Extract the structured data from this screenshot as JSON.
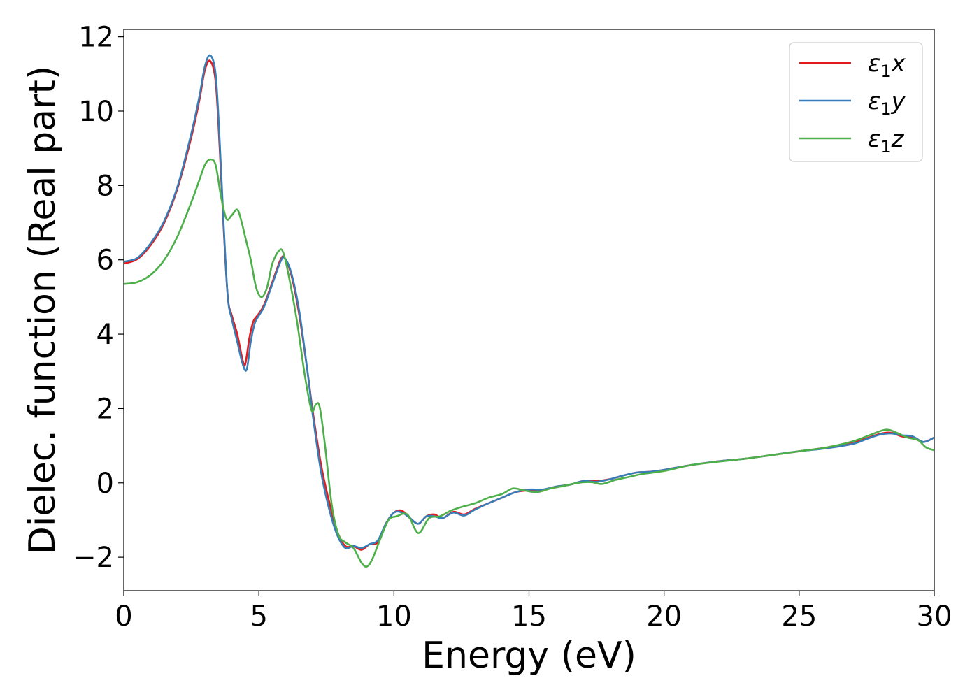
{
  "chart_data": {
    "type": "line",
    "title": "",
    "xlabel": "Energy (eV)",
    "ylabel": "Dielec. function (Real part)",
    "xlim": [
      0,
      30
    ],
    "ylim": [
      -2.9,
      12.2
    ],
    "xticks": [
      0,
      5,
      10,
      15,
      20,
      25,
      30
    ],
    "xtick_labels": [
      "0",
      "5",
      "10",
      "15",
      "20",
      "25",
      "30"
    ],
    "yticks": [
      -2,
      0,
      2,
      4,
      6,
      8,
      10,
      12
    ],
    "ytick_labels": [
      "−2",
      "0",
      "2",
      "4",
      "6",
      "8",
      "10",
      "12"
    ],
    "grid": false,
    "legend_position": "top-right",
    "series": [
      {
        "name": "ε1x",
        "legend_symbol": "ε",
        "legend_sub": "1",
        "legend_var": "x",
        "color": "#e41a1c",
        "x": [
          0,
          0.5,
          1.0,
          1.5,
          2.0,
          2.5,
          2.8,
          3.0,
          3.2,
          3.4,
          3.55,
          3.7,
          3.85,
          4.0,
          4.2,
          4.4,
          4.5,
          4.65,
          4.8,
          5.0,
          5.2,
          5.5,
          5.8,
          5.95,
          6.2,
          6.5,
          6.8,
          7.0,
          7.3,
          7.6,
          7.9,
          8.2,
          8.5,
          8.8,
          9.1,
          9.4,
          9.7,
          10.0,
          10.3,
          10.6,
          10.9,
          11.2,
          11.5,
          11.8,
          12.2,
          12.6,
          13.0,
          13.5,
          14.0,
          14.5,
          15.0,
          15.5,
          16.0,
          16.5,
          17.0,
          17.5,
          18.0,
          18.5,
          19.0,
          19.5,
          20.0,
          21.0,
          22.0,
          23.0,
          24.0,
          25.0,
          26.0,
          27.0,
          27.5,
          28.0,
          28.4,
          28.8,
          29.2,
          29.6,
          30.0
        ],
        "y": [
          5.9,
          6.02,
          6.4,
          7.0,
          7.95,
          9.3,
          10.3,
          11.1,
          11.35,
          10.8,
          9.0,
          6.8,
          5.0,
          4.5,
          4.0,
          3.3,
          3.2,
          3.9,
          4.35,
          4.55,
          4.8,
          5.4,
          6.0,
          6.05,
          5.6,
          4.5,
          3.0,
          1.9,
          0.5,
          -0.5,
          -1.3,
          -1.7,
          -1.7,
          -1.8,
          -1.65,
          -1.6,
          -1.1,
          -0.8,
          -0.75,
          -0.95,
          -1.1,
          -0.9,
          -0.85,
          -0.95,
          -0.78,
          -0.85,
          -0.7,
          -0.55,
          -0.4,
          -0.25,
          -0.2,
          -0.2,
          -0.1,
          -0.05,
          0.05,
          0.05,
          0.1,
          0.2,
          0.28,
          0.3,
          0.35,
          0.48,
          0.58,
          0.65,
          0.75,
          0.85,
          0.95,
          1.1,
          1.2,
          1.32,
          1.35,
          1.25,
          1.22,
          1.1,
          1.22
        ]
      },
      {
        "name": "ε1y",
        "legend_symbol": "ε",
        "legend_sub": "1",
        "legend_var": "y",
        "color": "#377eb8",
        "x": [
          0,
          0.5,
          1.0,
          1.5,
          2.0,
          2.5,
          2.8,
          3.0,
          3.2,
          3.4,
          3.55,
          3.7,
          3.85,
          4.0,
          4.2,
          4.4,
          4.55,
          4.7,
          4.85,
          5.0,
          5.2,
          5.5,
          5.8,
          5.95,
          6.2,
          6.5,
          6.8,
          7.0,
          7.3,
          7.6,
          7.9,
          8.2,
          8.5,
          8.8,
          9.1,
          9.4,
          9.7,
          10.0,
          10.3,
          10.6,
          10.9,
          11.2,
          11.5,
          11.8,
          12.2,
          12.6,
          13.0,
          13.5,
          14.0,
          14.5,
          15.0,
          15.5,
          16.0,
          16.5,
          17.0,
          17.5,
          18.0,
          18.5,
          19.0,
          19.5,
          20.0,
          21.0,
          22.0,
          23.0,
          24.0,
          25.0,
          26.0,
          27.0,
          27.5,
          28.0,
          28.4,
          28.8,
          29.2,
          29.6,
          30.0
        ],
        "y": [
          5.95,
          6.05,
          6.45,
          7.05,
          8.0,
          9.4,
          10.4,
          11.2,
          11.5,
          11.0,
          9.2,
          6.9,
          5.0,
          4.4,
          3.8,
          3.2,
          3.05,
          3.8,
          4.3,
          4.5,
          4.75,
          5.35,
          5.95,
          6.05,
          5.65,
          4.6,
          3.0,
          1.8,
          0.3,
          -0.7,
          -1.4,
          -1.75,
          -1.7,
          -1.75,
          -1.65,
          -1.55,
          -1.1,
          -0.8,
          -0.8,
          -0.95,
          -1.1,
          -0.9,
          -0.9,
          -0.95,
          -0.8,
          -0.88,
          -0.72,
          -0.55,
          -0.4,
          -0.25,
          -0.18,
          -0.18,
          -0.1,
          -0.05,
          0.05,
          0.03,
          0.1,
          0.2,
          0.28,
          0.3,
          0.35,
          0.48,
          0.58,
          0.65,
          0.75,
          0.85,
          0.93,
          1.05,
          1.18,
          1.3,
          1.33,
          1.28,
          1.25,
          1.1,
          1.22
        ]
      },
      {
        "name": "ε1z",
        "legend_symbol": "ε",
        "legend_sub": "1",
        "legend_var": "z",
        "color": "#4daf4a",
        "x": [
          0,
          0.5,
          1.0,
          1.5,
          2.0,
          2.5,
          2.8,
          3.0,
          3.2,
          3.4,
          3.6,
          3.8,
          4.0,
          4.2,
          4.35,
          4.5,
          4.7,
          4.9,
          5.1,
          5.3,
          5.5,
          5.75,
          5.9,
          6.1,
          6.4,
          6.7,
          6.95,
          7.1,
          7.25,
          7.45,
          7.7,
          7.95,
          8.2,
          8.5,
          8.8,
          9.0,
          9.2,
          9.5,
          9.8,
          10.1,
          10.5,
          10.9,
          11.3,
          11.7,
          12.1,
          12.5,
          13.0,
          13.5,
          14.0,
          14.4,
          14.8,
          15.3,
          15.8,
          16.3,
          16.8,
          17.3,
          17.7,
          18.2,
          18.7,
          19.2,
          20.0,
          21.0,
          22.0,
          23.0,
          24.0,
          25.0,
          26.0,
          27.0,
          27.6,
          28.2,
          28.6,
          29.0,
          29.4,
          29.7,
          30.0
        ],
        "y": [
          5.35,
          5.4,
          5.6,
          6.0,
          6.65,
          7.55,
          8.15,
          8.55,
          8.7,
          8.55,
          7.7,
          7.1,
          7.2,
          7.35,
          7.05,
          6.6,
          6.0,
          5.25,
          5.0,
          5.25,
          5.9,
          6.25,
          6.2,
          5.6,
          4.4,
          2.9,
          1.95,
          2.1,
          2.05,
          1.0,
          -0.6,
          -1.4,
          -1.6,
          -1.75,
          -2.15,
          -2.25,
          -2.05,
          -1.5,
          -1.0,
          -0.9,
          -0.85,
          -1.35,
          -0.95,
          -0.9,
          -0.75,
          -0.65,
          -0.55,
          -0.4,
          -0.3,
          -0.15,
          -0.2,
          -0.25,
          -0.15,
          -0.08,
          0.0,
          0.02,
          -0.03,
          0.08,
          0.16,
          0.24,
          0.32,
          0.48,
          0.57,
          0.65,
          0.75,
          0.85,
          0.95,
          1.12,
          1.28,
          1.43,
          1.35,
          1.22,
          1.15,
          0.95,
          0.88
        ]
      }
    ]
  }
}
